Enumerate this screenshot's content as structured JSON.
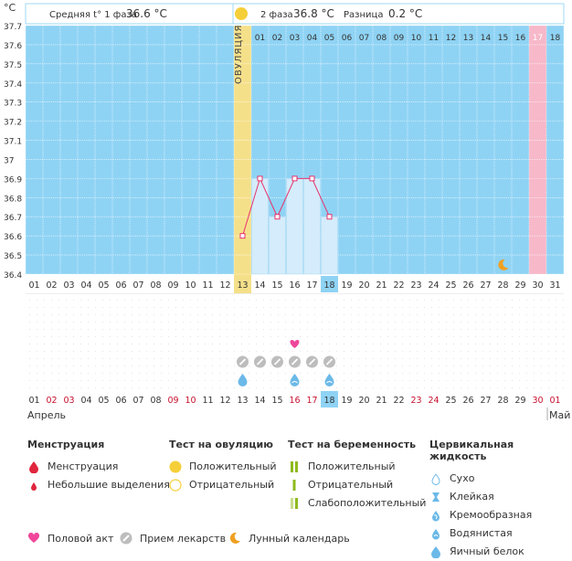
{
  "header": {
    "phase1_label": "Средняя t° 1 фаза",
    "phase1_value": "36.6 °C",
    "phase2_label": "2 фаза",
    "phase2_value": "36.8 °C",
    "diff_label": "Разница",
    "diff_value": "0.2 °C"
  },
  "y_axis": {
    "unit": "°C",
    "ticks": [
      "37.7",
      "37.6",
      "37.5",
      "37.4",
      "37.3",
      "37.2",
      "37.1",
      "37",
      "36.9",
      "36.8",
      "36.7",
      "36.6",
      "36.5",
      "36.4"
    ]
  },
  "ovulation_label": "ОВУЛЯЦИЯ",
  "cycle_days": [
    "01",
    "02",
    "03",
    "04",
    "05",
    "06",
    "07",
    "08",
    "09",
    "10",
    "11",
    "12",
    "13",
    "14",
    "15",
    "16",
    "17",
    "18"
  ],
  "calendar_days": [
    "01",
    "02",
    "03",
    "04",
    "05",
    "06",
    "07",
    "08",
    "09",
    "10",
    "11",
    "12",
    "13",
    "14",
    "15",
    "16",
    "17",
    "18",
    "19",
    "20",
    "21",
    "22",
    "23",
    "24",
    "25",
    "26",
    "27",
    "28",
    "29",
    "30",
    "31"
  ],
  "bottom_days": [
    "01",
    "02",
    "03",
    "04",
    "05",
    "06",
    "07",
    "08",
    "09",
    "10",
    "11",
    "12",
    "13",
    "14",
    "15",
    "16",
    "17",
    "18",
    "19",
    "20",
    "21",
    "22",
    "23",
    "24",
    "25",
    "26",
    "27",
    "28",
    "29",
    "30",
    "01"
  ],
  "bottom_red_days": [
    "02",
    "03",
    "09",
    "10",
    "16",
    "17",
    "23",
    "24",
    "30"
  ],
  "month_start": "Апрель",
  "month_end": "Май",
  "chart_data": {
    "type": "line",
    "x_calendar": [
      13,
      14,
      15,
      16,
      17,
      18
    ],
    "temperatures": [
      36.6,
      36.9,
      36.7,
      36.9,
      36.9,
      36.7
    ],
    "ylim": [
      36.4,
      37.7
    ],
    "ovulation_day": 13,
    "today_day": 18,
    "expected_period_day": 30,
    "moon_day": 28,
    "medication_days": [
      13,
      14,
      15,
      16,
      17,
      18
    ],
    "intercourse_days": [
      16
    ],
    "fluid_marks": [
      {
        "day": 13,
        "type": "egg-white"
      },
      {
        "day": 16,
        "type": "watery"
      },
      {
        "day": 18,
        "type": "watery"
      }
    ]
  },
  "legend": {
    "menstruation": {
      "title": "Менструация",
      "items": [
        "Менструация",
        "Небольшие выделения"
      ]
    },
    "ovulation_test": {
      "title": "Тест на овуляцию",
      "items": [
        "Положительный",
        "Отрицательный"
      ]
    },
    "pregnancy_test": {
      "title": "Тест на беременность",
      "items": [
        "Положительный",
        "Отрицательный",
        "Слабоположительный"
      ]
    },
    "cervical_fluid": {
      "title": "Цервикальная жидкость",
      "items": [
        "Сухо",
        "Клейкая",
        "Кремообразная",
        "Водянистая",
        "Яичный белок"
      ]
    },
    "bottom": [
      "Половой акт",
      "Прием лекарств",
      "Лунный календарь"
    ]
  },
  "colors": {
    "chart_bg": "#8fd3f4",
    "grid": "#ffffff",
    "ovulation": "#f5e08a",
    "period": "#f7b8c9",
    "line": "#e8326d",
    "bar": "#d4ecfb",
    "today": "#8fd3f4",
    "red_text": "#c8102e",
    "moon": "#f0a020",
    "heart": "#f0479b",
    "drop": "#6bb9e8"
  }
}
